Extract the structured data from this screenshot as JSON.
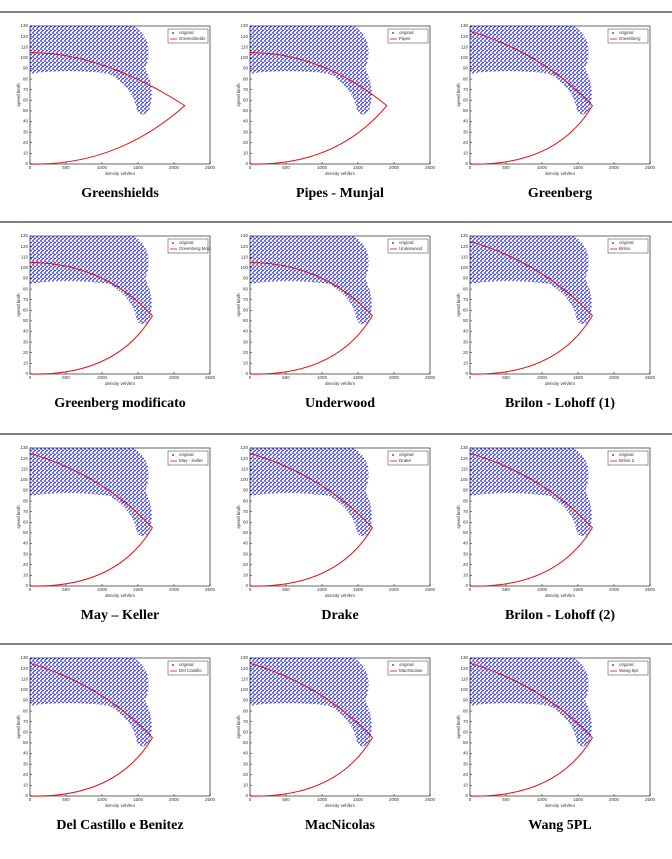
{
  "axes": {
    "xlabel": "density veh/km",
    "ylabel": "speed km/h",
    "xticks": [
      0,
      500,
      1000,
      1500,
      2000,
      2500
    ],
    "yticks": [
      0,
      10,
      20,
      30,
      40,
      50,
      60,
      70,
      80,
      90,
      100,
      110,
      120,
      130
    ]
  },
  "panels": [
    {
      "caption": "Greenshields",
      "legend": [
        "original",
        "Greenshields"
      ]
    },
    {
      "caption": "Pipes - Munjal",
      "legend": [
        "original",
        "Pipes"
      ]
    },
    {
      "caption": "Greenberg",
      "legend": [
        "original",
        "Greenberg"
      ]
    },
    {
      "caption": "Greenberg modificato",
      "legend": [
        "original",
        "Greenberg Mod."
      ]
    },
    {
      "caption": "Underwood",
      "legend": [
        "original",
        "Underwood"
      ]
    },
    {
      "caption": "Brilon - Lohoff (1)",
      "legend": [
        "original",
        "Brilon"
      ]
    },
    {
      "caption": "May – Keller",
      "legend": [
        "original",
        "May - Keller"
      ]
    },
    {
      "caption": "Drake",
      "legend": [
        "original",
        "Drake"
      ]
    },
    {
      "caption": "Brilon - Lohoff (2)",
      "legend": [
        "original",
        "Brilon 2"
      ]
    },
    {
      "caption": "Del Castillo e Benitez",
      "legend": [
        "original",
        "Del Castillo"
      ]
    },
    {
      "caption": "MacNicolas",
      "legend": [
        "original",
        "MacNicolas"
      ]
    },
    {
      "caption": "Wang 5PL",
      "legend": [
        "original",
        "Wang 5pl"
      ]
    }
  ]
}
